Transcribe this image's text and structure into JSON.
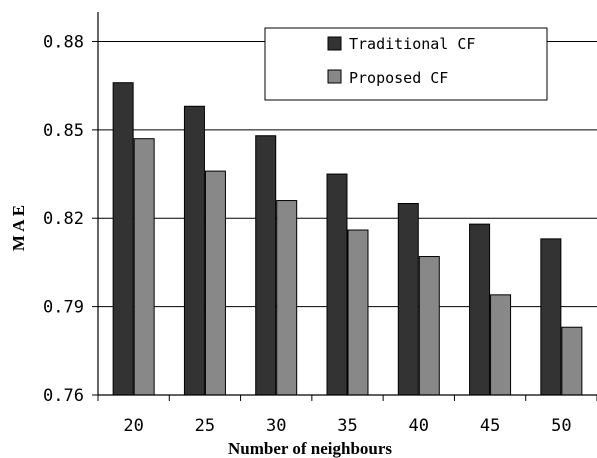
{
  "chart_data": {
    "type": "bar",
    "categories": [
      "20",
      "25",
      "30",
      "35",
      "40",
      "45",
      "50"
    ],
    "series": [
      {
        "name": "Traditional CF",
        "color": "#333333",
        "values": [
          0.866,
          0.858,
          0.848,
          0.835,
          0.825,
          0.818,
          0.813
        ]
      },
      {
        "name": "Proposed CF",
        "color": "#888888",
        "values": [
          0.847,
          0.836,
          0.826,
          0.816,
          0.807,
          0.794,
          0.783
        ]
      }
    ],
    "xlabel": "Number of neighbours",
    "ylabel": "M A E",
    "ylim": [
      0.76,
      0.89
    ],
    "yticks": [
      "0.76",
      "0.79",
      "0.82",
      "0.85",
      "0.88"
    ],
    "grid": true,
    "legend_position": "top-right"
  }
}
